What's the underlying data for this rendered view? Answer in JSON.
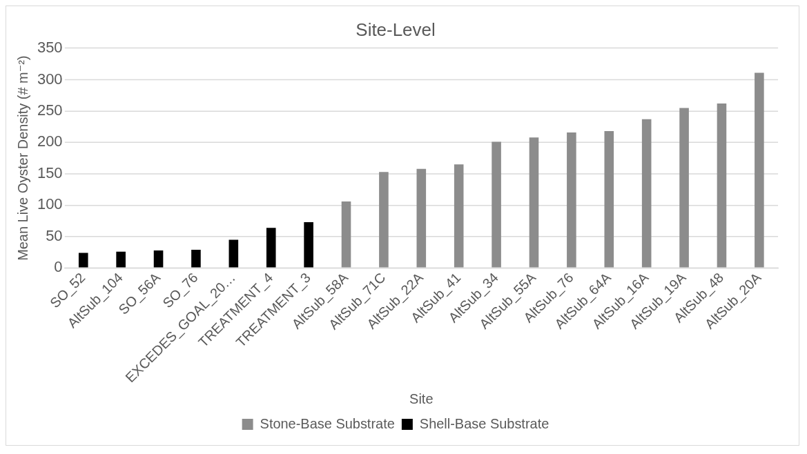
{
  "chart_data": {
    "type": "bar",
    "title": "Site-Level",
    "xlabel": "Site",
    "ylabel": "Mean Live Oyster Density (# m⁻²)",
    "categories": [
      "SO_52",
      "AltSub_104",
      "SO_56A",
      "SO_76",
      "EXCEDES_GOAL_20…",
      "TREATMENT_4",
      "TREATMENT_3",
      "AltSub_58A",
      "AltSub_71C",
      "AltSub_22A",
      "AltSub_41",
      "AltSub_34",
      "AltSub_55A",
      "AltSub_76",
      "AltSub_64A",
      "AltSub_16A",
      "AltSub_19A",
      "AltSub_48",
      "AltSub_20A"
    ],
    "series": [
      {
        "name": "Stone-Base Substrate",
        "color": "#8c8c8c",
        "values": [
          null,
          null,
          null,
          null,
          null,
          null,
          null,
          106,
          153,
          158,
          165,
          201,
          208,
          216,
          218,
          237,
          255,
          262,
          311
        ]
      },
      {
        "name": "Shell-Base Substrate",
        "color": "#000000",
        "values": [
          24,
          26,
          28,
          29,
          45,
          64,
          73,
          null,
          null,
          null,
          null,
          null,
          null,
          null,
          null,
          null,
          null,
          null,
          null
        ]
      }
    ],
    "ylim": [
      0,
      350
    ],
    "yticks": [
      0,
      50,
      100,
      150,
      200,
      250,
      300,
      350
    ],
    "grid": "y",
    "legend": "bottom"
  }
}
